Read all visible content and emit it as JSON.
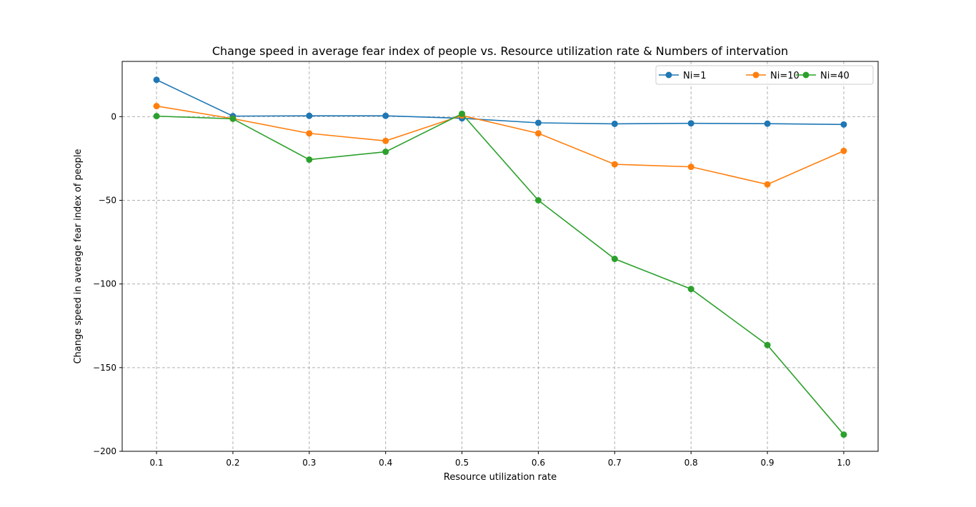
{
  "chart_data": {
    "type": "line",
    "title": "Change speed in average fear index of people vs. Resource utilization rate & Numbers of intervation",
    "xlabel": "Resource utilization rate",
    "ylabel": "Change speed in average fear index of people",
    "x": [
      0.1,
      0.2,
      0.3,
      0.4,
      0.5,
      0.6,
      0.7,
      0.8,
      0.9,
      1.0
    ],
    "x_ticks": [
      "0.1",
      "0.2",
      "0.3",
      "0.4",
      "0.5",
      "0.6",
      "0.7",
      "0.8",
      "0.9",
      "1.0"
    ],
    "y_ticks": [
      0,
      -50,
      -100,
      -150,
      -200
    ],
    "y_tick_labels": [
      "0",
      "−50",
      "−100",
      "−150",
      "−200"
    ],
    "xlim": [
      0.055,
      1.045
    ],
    "ylim": [
      -200,
      33
    ],
    "grid": true,
    "legend_position": "top-right",
    "series": [
      {
        "name": "Ni=1",
        "color": "#1f77b4",
        "values": [
          22,
          0.3,
          0.5,
          0.5,
          -1,
          -3.7,
          -4.3,
          -4,
          -4.2,
          -4.7
        ]
      },
      {
        "name": "Ni=10",
        "color": "#ff7f0e",
        "values": [
          6.3,
          -1.2,
          -10,
          -14.5,
          0.7,
          -10,
          -28.5,
          -30,
          -40.5,
          -20.5
        ]
      },
      {
        "name": "Ni=40",
        "color": "#2ca02c",
        "values": [
          0.3,
          -1.3,
          -25.7,
          -21,
          1.7,
          -50,
          -85,
          -103,
          -136.5,
          -190
        ]
      }
    ]
  }
}
